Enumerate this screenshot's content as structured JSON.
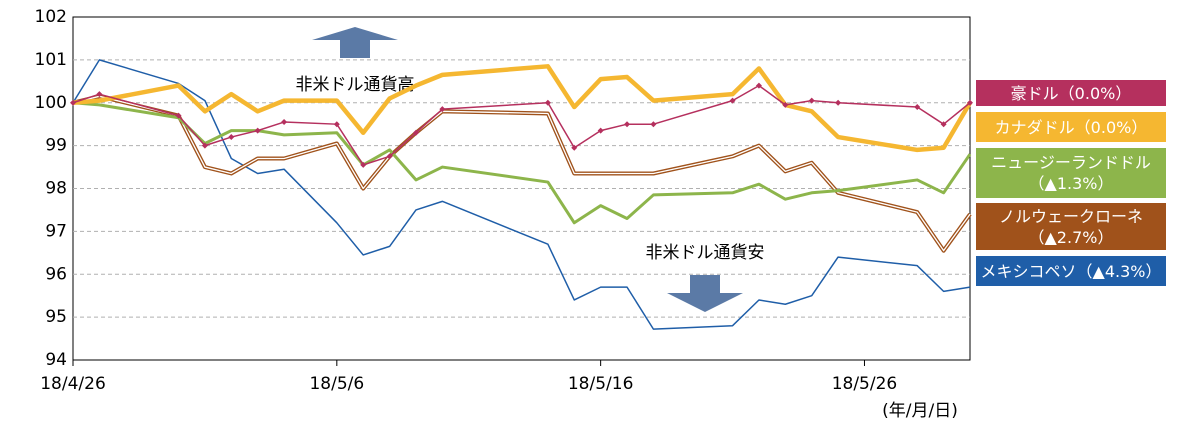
{
  "chart_data": {
    "type": "line",
    "x": [
      "18/4/26",
      "18/4/27",
      "18/4/30",
      "18/5/1",
      "18/5/2",
      "18/5/3",
      "18/5/4",
      "18/5/6",
      "18/5/7",
      "18/5/8",
      "18/5/9",
      "18/5/10",
      "18/5/14",
      "18/5/15",
      "18/5/16",
      "18/5/17",
      "18/5/18",
      "18/5/21",
      "18/5/22",
      "18/5/23",
      "18/5/24",
      "18/5/25",
      "18/5/28",
      "18/5/29",
      "18/5/30"
    ],
    "series": [
      {
        "name": "豪ドル（0.0%）",
        "color": "#b5305e",
        "values": [
          100,
          100.2,
          99.7,
          99.0,
          99.2,
          99.35,
          99.55,
          99.5,
          98.55,
          98.75,
          99.3,
          99.85,
          100.0,
          98.95,
          99.35,
          99.5,
          99.5,
          100.05,
          100.4,
          99.95,
          100.05,
          100.0,
          99.9,
          99.5,
          100
        ]
      },
      {
        "name": "カナダドル（0.0%）",
        "color": "#f5b731",
        "values": [
          100,
          100.05,
          100.4,
          99.8,
          100.2,
          99.8,
          100.05,
          100.05,
          99.3,
          100.1,
          100.4,
          100.65,
          100.85,
          99.9,
          100.55,
          100.6,
          100.05,
          100.2,
          100.8,
          99.95,
          99.8,
          99.2,
          98.9,
          98.95,
          100
        ]
      },
      {
        "name": "ニュージーランドドル\n（▲1.3%）",
        "color": "#8db54b",
        "values": [
          100,
          99.95,
          99.65,
          99.05,
          99.35,
          99.35,
          99.25,
          99.3,
          98.55,
          98.9,
          98.2,
          98.5,
          98.15,
          97.2,
          97.6,
          97.3,
          97.85,
          97.9,
          98.1,
          97.75,
          97.9,
          97.95,
          98.2,
          97.9,
          98.8
        ]
      },
      {
        "name": "ノルウェークローネ\n（▲2.7%）",
        "color": "#a0521b",
        "values": [
          100,
          100.15,
          99.7,
          98.5,
          98.35,
          98.7,
          98.7,
          99.05,
          98.0,
          98.75,
          99.3,
          99.8,
          99.75,
          98.35,
          98.35,
          98.35,
          98.35,
          98.75,
          99.0,
          98.4,
          98.6,
          97.9,
          97.45,
          96.55,
          97.4
        ]
      },
      {
        "name": "メキシコペソ（▲4.3%）",
        "color": "#1f5ea8",
        "values": [
          100,
          101.0,
          100.45,
          100.05,
          98.7,
          98.35,
          98.45,
          97.2,
          96.45,
          96.65,
          97.5,
          97.7,
          96.7,
          95.4,
          95.7,
          95.7,
          94.72,
          94.8,
          95.4,
          95.3,
          95.5,
          96.4,
          96.2,
          95.6,
          95.7
        ]
      }
    ],
    "xlim": [
      "18/4/26",
      "18/5/30"
    ],
    "xticks": [
      "18/4/26",
      "18/5/6",
      "18/5/16",
      "18/5/26"
    ],
    "ylim": [
      94,
      102
    ],
    "yticks": [
      94,
      95,
      96,
      97,
      98,
      99,
      100,
      101,
      102
    ],
    "grid": true,
    "annotations": [
      "非米ドル通貨高",
      "非米ドル通貨安"
    ],
    "x_axis_note": "(年/月/日)"
  }
}
